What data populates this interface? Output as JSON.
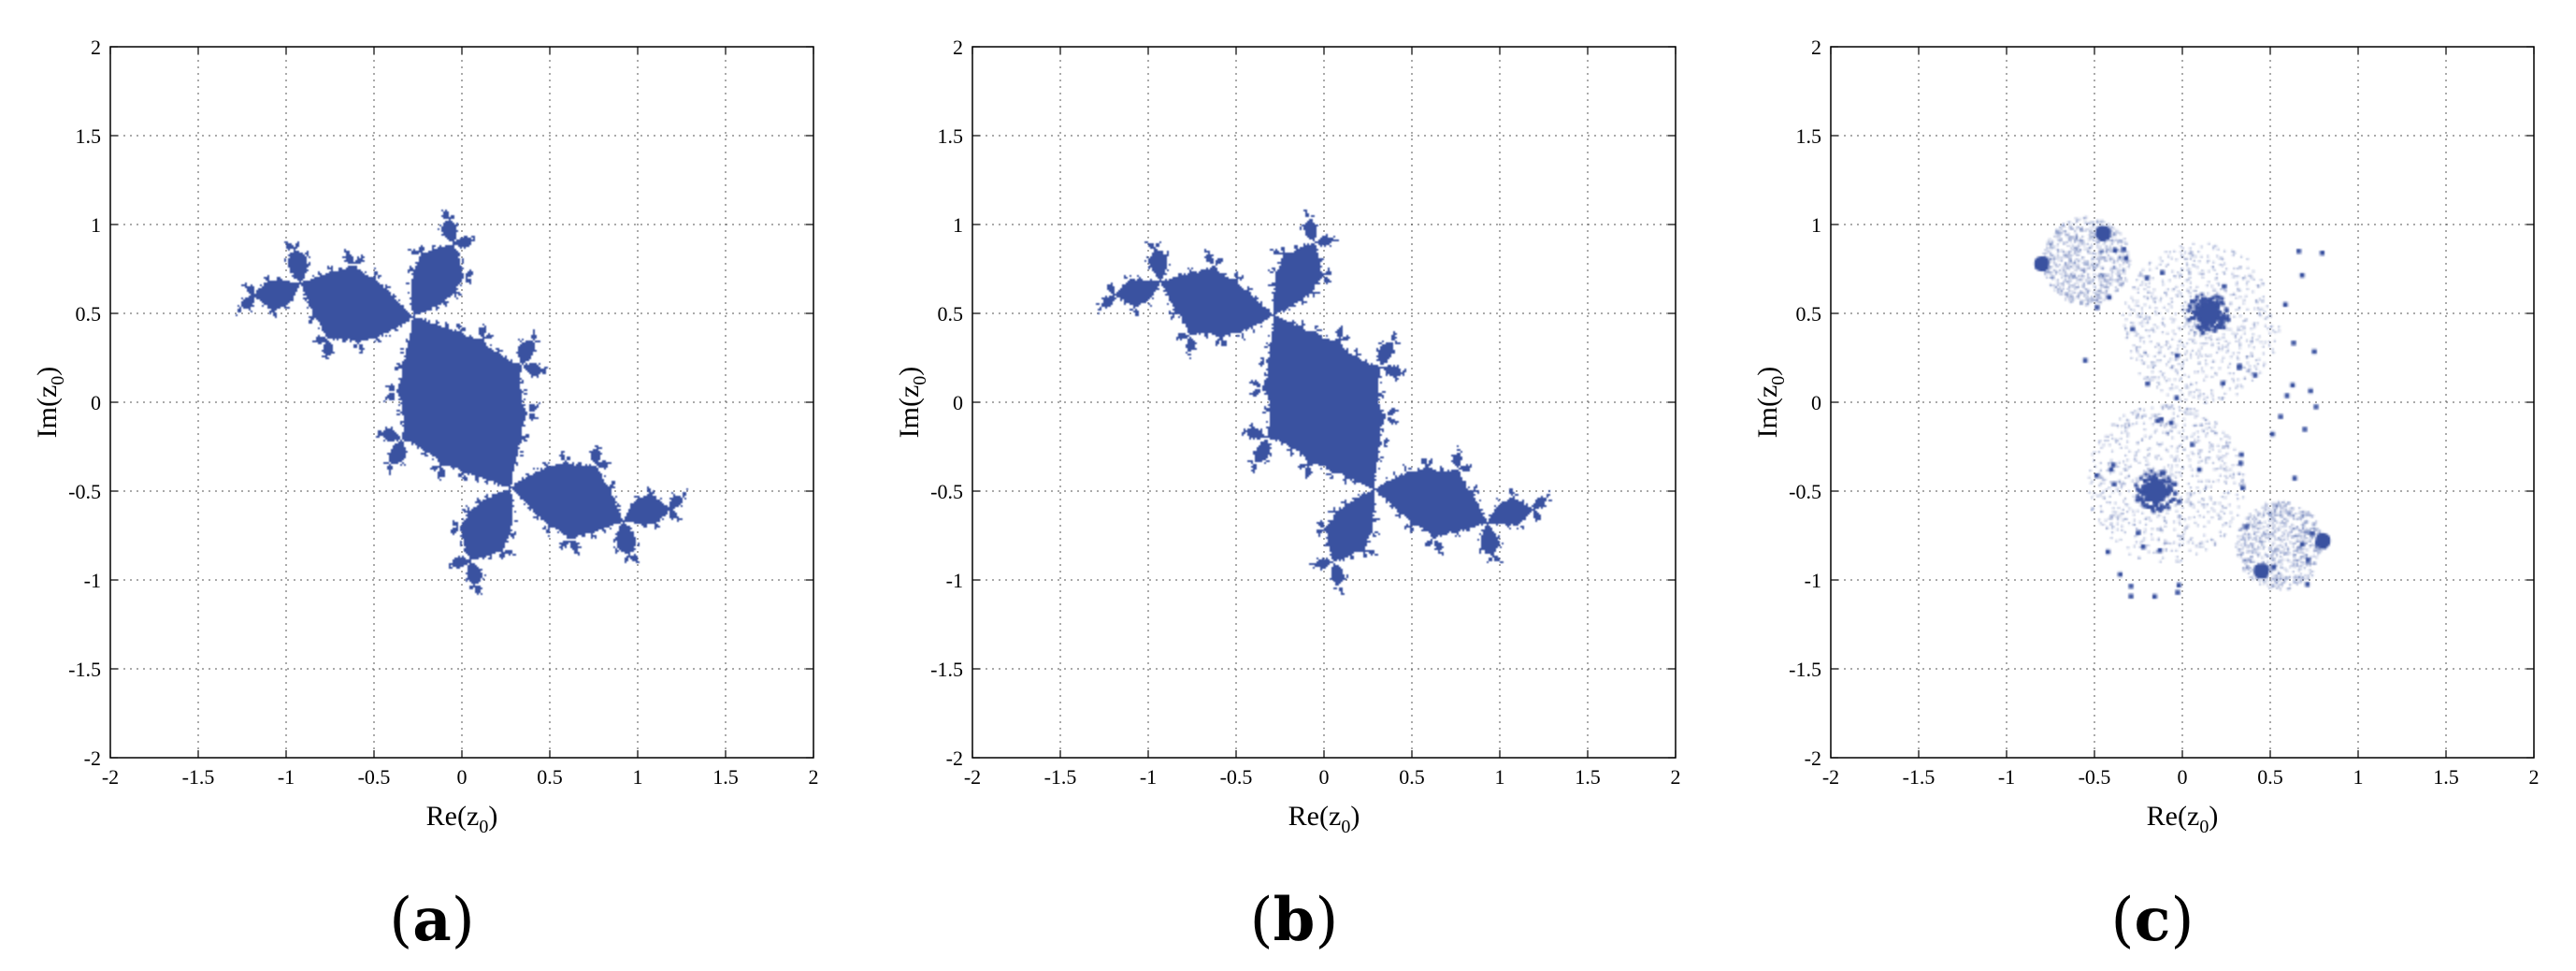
{
  "chart_data": [
    {
      "type": "scatter",
      "panel_label": {
        "open": "(",
        "letter": "a",
        "close": ")"
      },
      "xlabel": {
        "main": "Re(z",
        "sub": "0",
        "close": ")"
      },
      "ylabel": {
        "main": "Im(z",
        "sub": "0",
        "close": ")"
      },
      "xlim": [
        -2,
        2
      ],
      "ylim": [
        -2,
        2
      ],
      "xticks": [
        "-2",
        "-1.5",
        "-1",
        "-0.5",
        "0",
        "0.5",
        "1",
        "1.5",
        "2"
      ],
      "yticks": [
        "-2",
        "-1.5",
        "-1",
        "-0.5",
        "0",
        "0.5",
        "1",
        "1.5",
        "2"
      ],
      "grid": true,
      "fill": "filled_julia_set",
      "c": [
        -0.12,
        0.75
      ],
      "iterations": 60,
      "color": "#3a52a0"
    },
    {
      "type": "scatter",
      "panel_label": {
        "open": "(",
        "letter": "b",
        "close": ")"
      },
      "xlabel": {
        "main": "Re(z",
        "sub": "0",
        "close": ")"
      },
      "ylabel": {
        "main": "Im(z",
        "sub": "0",
        "close": ")"
      },
      "xlim": [
        -2,
        2
      ],
      "ylim": [
        -2,
        2
      ],
      "xticks": [
        "-2",
        "-1.5",
        "-1",
        "-0.5",
        "0",
        "0.5",
        "1",
        "1.5",
        "2"
      ],
      "yticks": [
        "-2",
        "-1.5",
        "-1",
        "-0.5",
        "0",
        "0.5",
        "1",
        "1.5",
        "2"
      ],
      "grid": true,
      "fill": "filled_julia_set",
      "c": [
        -0.12,
        0.77
      ],
      "iterations": 60,
      "color": "#3a52a0"
    },
    {
      "type": "scatter",
      "panel_label": {
        "open": "(",
        "letter": "c",
        "close": ")"
      },
      "xlabel": {
        "main": "Re(z",
        "sub": "0",
        "close": ")"
      },
      "ylabel": {
        "main": "Im(z",
        "sub": "0",
        "close": ")"
      },
      "xlim": [
        -2,
        2
      ],
      "ylim": [
        -2,
        2
      ],
      "xticks": [
        "-2",
        "-1.5",
        "-1",
        "-0.5",
        "0",
        "0.5",
        "1",
        "1.5",
        "2"
      ],
      "yticks": [
        "-2",
        "-1.5",
        "-1",
        "-0.5",
        "0",
        "0.5",
        "1",
        "1.5",
        "2"
      ],
      "grid": true,
      "fill": "scattered_points",
      "color": "#3a52a0",
      "clusters": [
        {
          "x": 0.15,
          "y": 0.5
        },
        {
          "x": -0.15,
          "y": -0.5
        },
        {
          "x": -0.45,
          "y": 0.95
        },
        {
          "x": 0.45,
          "y": -0.95
        },
        {
          "x": -0.8,
          "y": 0.78
        },
        {
          "x": 0.8,
          "y": -0.78
        }
      ]
    }
  ]
}
